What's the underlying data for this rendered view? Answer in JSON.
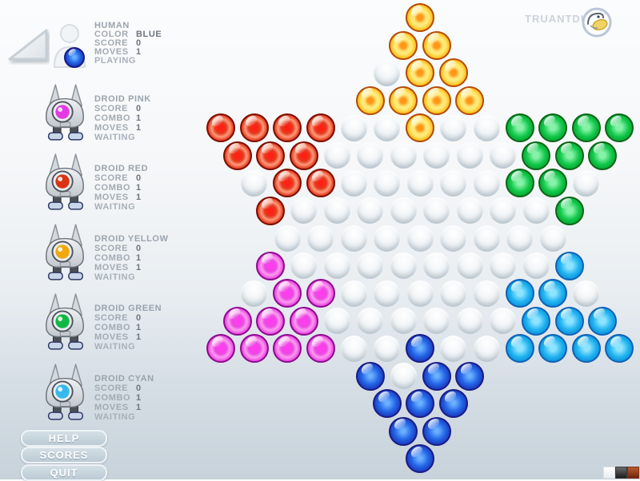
{
  "brand": {
    "name": "TRUANTDUCK"
  },
  "sidebar": {
    "human": {
      "name": "HUMAN",
      "rows": [
        [
          "COLOR",
          "BLUE"
        ],
        [
          "SCORE",
          "0"
        ],
        [
          "MOVES",
          "1"
        ]
      ],
      "status": "PLAYING",
      "marble_color": "blue"
    },
    "droids": [
      {
        "name": "DROID PINK",
        "eye": "#e33ae3",
        "rows": [
          [
            "SCORE",
            "0"
          ],
          [
            "COMBO",
            "1"
          ],
          [
            "MOVES",
            "1"
          ]
        ],
        "status": "WAITING"
      },
      {
        "name": "DROID RED",
        "eye": "#d93514",
        "rows": [
          [
            "SCORE",
            "0"
          ],
          [
            "COMBO",
            "1"
          ],
          [
            "MOVES",
            "1"
          ]
        ],
        "status": "WAITING"
      },
      {
        "name": "DROID YELLOW",
        "eye": "#efa90e",
        "rows": [
          [
            "SCORE",
            "0"
          ],
          [
            "COMBO",
            "1"
          ],
          [
            "MOVES",
            "1"
          ]
        ],
        "status": "WAITING"
      },
      {
        "name": "DROID GREEN",
        "eye": "#12b847",
        "rows": [
          [
            "SCORE",
            "0"
          ],
          [
            "COMBO",
            "1"
          ],
          [
            "MOVES",
            "1"
          ]
        ],
        "status": "WAITING"
      },
      {
        "name": "DROID CYAN",
        "eye": "#38b9ec",
        "rows": [
          [
            "SCORE",
            "0"
          ],
          [
            "COMBO",
            "1"
          ],
          [
            "MOVES",
            "1"
          ]
        ],
        "status": "WAITING"
      }
    ],
    "buttons": [
      {
        "label": "HELP"
      },
      {
        "label": "SCORES"
      },
      {
        "label": "QUIT"
      }
    ]
  },
  "board": {
    "rows": [
      "Y",
      "YY",
      ".YY",
      "YYYY",
      "RRRR..Y..GGGG",
      "RRR......GGG",
      ".RR.....GG.",
      "R........G",
      ".........",
      "P........C",
      ".PP.....CC.",
      "PPP......CCC",
      "PPPP..B..CCCC",
      "B.BB",
      "BBB",
      "BB",
      "B"
    ],
    "legend": {
      "Y": "yellow",
      "R": "red",
      "G": "green",
      "P": "pink",
      "C": "cyan",
      "B": "blue",
      ".": "empty"
    },
    "palette": {
      "yellow": {
        "light": "#ffe978",
        "main": "#ffc21e",
        "dark": "#ef7a02",
        "rim": "#b64a06",
        "dot": "#ff9718"
      },
      "red": {
        "light": "#ff9a7a",
        "main": "#e23c20",
        "dark": "#a50a00",
        "rim": "#7c0e00",
        "dot": "#ff2014"
      },
      "green": {
        "light": "#86f2a8",
        "main": "#12c94b",
        "dark": "#009428",
        "rim": "#0b6616",
        "dot": "#0fe050"
      },
      "pink": {
        "light": "#ff9bf0",
        "main": "#e84ae0",
        "dark": "#b800b0",
        "rim": "#8e0a8e",
        "dot": "#ff3cf0"
      },
      "cyan": {
        "light": "#8ee4ff",
        "main": "#22b4f0",
        "dark": "#0081d1",
        "rim": "#1062b6",
        "dot": "#30d0ff"
      },
      "blue": {
        "light": "#6ab0ff",
        "main": "#2568e8",
        "dark": "#1522a8",
        "rim": "#1a1c86",
        "dot": "#1240d8"
      }
    }
  },
  "swatches": [
    {
      "name": "white",
      "color": "#f3f6f8"
    },
    {
      "name": "black",
      "color": "#2e3236"
    },
    {
      "name": "rust",
      "color": "#9e4420"
    }
  ]
}
